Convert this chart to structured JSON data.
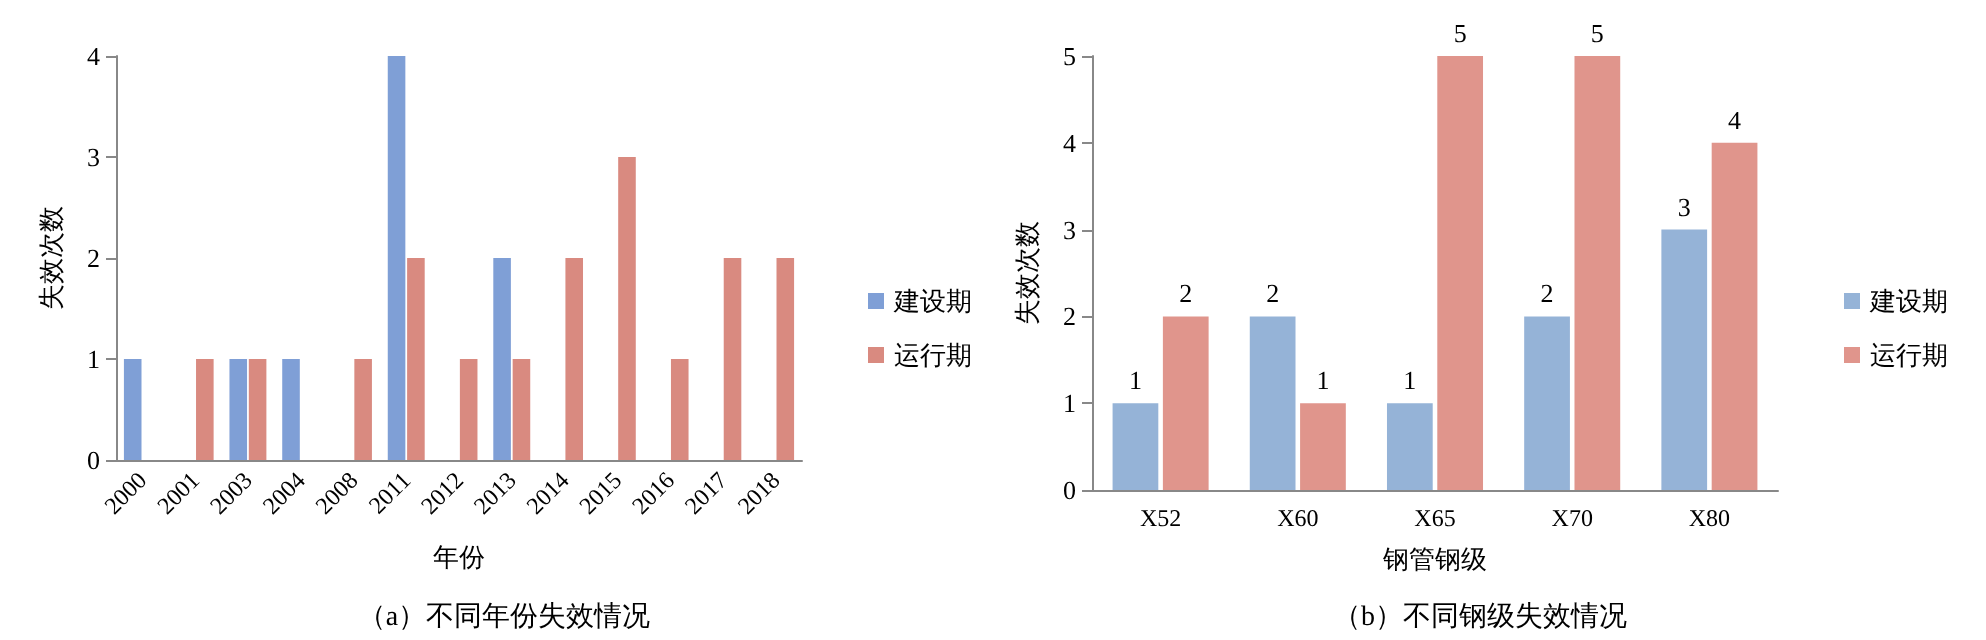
{
  "chart_data": [
    {
      "type": "bar",
      "xlabel": "年份",
      "ylabel": "失效次数",
      "annotations": [
        "（a）不同年份失效情况"
      ],
      "categories": [
        "2000",
        "2001",
        "2003",
        "2004",
        "2008",
        "2011",
        "2012",
        "2013",
        "2014",
        "2015",
        "2016",
        "2017",
        "2018"
      ],
      "series": [
        {
          "name": "建设期",
          "color": "#7f9fd6",
          "values": [
            1,
            0,
            1,
            1,
            0,
            4,
            0,
            2,
            0,
            0,
            0,
            0,
            0
          ]
        },
        {
          "name": "运行期",
          "color": "#d98a80",
          "values": [
            0,
            1,
            1,
            0,
            1,
            2,
            1,
            1,
            2,
            3,
            1,
            2,
            2
          ]
        }
      ],
      "ylim": [
        0,
        4
      ],
      "yticks": [
        0,
        1,
        2,
        3,
        4
      ],
      "legend": "right"
    },
    {
      "type": "bar",
      "xlabel": "钢管钢级",
      "ylabel": "失效次数",
      "annotations": [
        "（b）不同钢级失效情况"
      ],
      "categories": [
        "X52",
        "X60",
        "X65",
        "X70",
        "X80"
      ],
      "series": [
        {
          "name": "建设期",
          "color": "#95b3d7",
          "values": [
            1,
            2,
            1,
            2,
            3
          ]
        },
        {
          "name": "运行期",
          "color": "#e0958c",
          "values": [
            2,
            1,
            5,
            5,
            4
          ]
        }
      ],
      "ylim": [
        0,
        5
      ],
      "yticks": [
        0,
        1,
        2,
        3,
        4,
        5
      ],
      "legend": "right",
      "data_labels": true
    }
  ]
}
